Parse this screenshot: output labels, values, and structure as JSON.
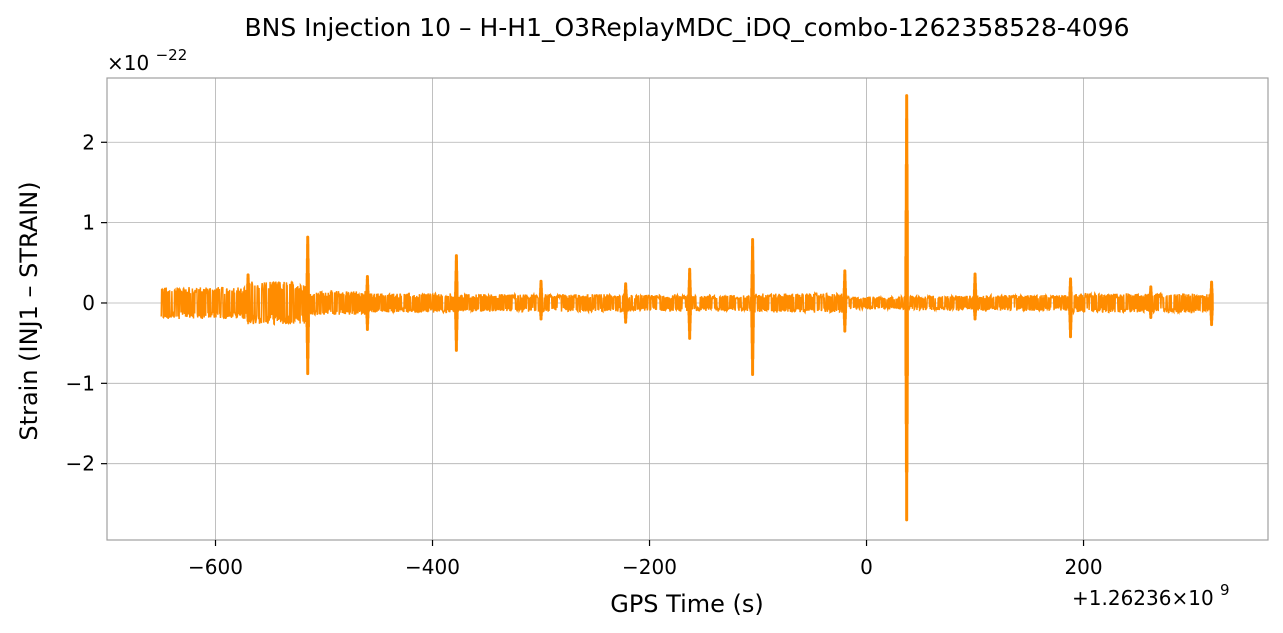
{
  "chart_data": {
    "type": "line",
    "title": "BNS Injection 10 – H-H1_O3ReplayMDC_iDQ_combo-1262358528-4096",
    "xlabel": "GPS Time (s)",
    "ylabel": "Strain (INJ1 – STRAIN)",
    "x_offset_label": "+1.26236×10",
    "x_offset_exponent": "9",
    "y_scale_label": "×10",
    "y_scale_exponent": "−22",
    "xlim": [
      -700,
      370
    ],
    "ylim": [
      -2.95,
      2.8
    ],
    "xticks": [
      -600,
      -400,
      -200,
      0,
      200
    ],
    "xtick_labels": [
      "−600",
      "−400",
      "−200",
      "0",
      "200"
    ],
    "yticks": [
      -2,
      -1,
      0,
      1,
      2
    ],
    "ytick_labels": [
      "−2",
      "−1",
      "0",
      "1",
      "2"
    ],
    "grid": true,
    "color": "#ff8c00",
    "series": [
      {
        "noise_segments": [
          {
            "x": [
              -650,
              -570
            ],
            "amplitude": 0.2
          },
          {
            "x": [
              -570,
              -515
            ],
            "amplitude": 0.27
          },
          {
            "x": [
              -515,
              -460
            ],
            "amplitude": 0.15
          },
          {
            "x": [
              -460,
              -378
            ],
            "amplitude": 0.12
          },
          {
            "x": [
              -378,
              -300
            ],
            "amplitude": 0.11
          },
          {
            "x": [
              -300,
              -222
            ],
            "amplitude": 0.11
          },
          {
            "x": [
              -222,
              -163
            ],
            "amplitude": 0.1
          },
          {
            "x": [
              -163,
              -105
            ],
            "amplitude": 0.1
          },
          {
            "x": [
              -105,
              -20
            ],
            "amplitude": 0.12
          },
          {
            "x": [
              -20,
              37
            ],
            "amplitude": 0.08
          },
          {
            "x": [
              37,
              100
            ],
            "amplitude": 0.09
          },
          {
            "x": [
              100,
              188
            ],
            "amplitude": 0.1
          },
          {
            "x": [
              188,
              318
            ],
            "amplitude": 0.12
          }
        ],
        "spikes": [
          {
            "x": -570,
            "max": 0.35,
            "min": -0.22
          },
          {
            "x": -515,
            "max": 0.82,
            "min": -0.88
          },
          {
            "x": -460,
            "max": 0.33,
            "min": -0.33
          },
          {
            "x": -378,
            "max": 0.59,
            "min": -0.59
          },
          {
            "x": -300,
            "max": 0.27,
            "min": -0.2
          },
          {
            "x": -222,
            "max": 0.24,
            "min": -0.24
          },
          {
            "x": -163,
            "max": 0.42,
            "min": -0.44
          },
          {
            "x": -105,
            "max": 0.79,
            "min": -0.89
          },
          {
            "x": -20,
            "max": 0.4,
            "min": -0.35
          },
          {
            "x": 37,
            "max": 2.58,
            "min": -2.7
          },
          {
            "x": 100,
            "max": 0.36,
            "min": -0.2
          },
          {
            "x": 188,
            "max": 0.3,
            "min": -0.42
          },
          {
            "x": 262,
            "max": 0.2,
            "min": -0.18
          },
          {
            "x": 318,
            "max": 0.26,
            "min": -0.27
          }
        ]
      }
    ]
  }
}
